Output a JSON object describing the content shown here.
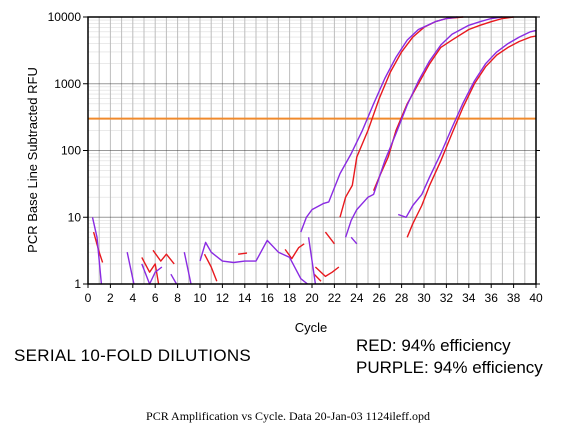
{
  "chart_data": {
    "type": "line",
    "title": "",
    "xlabel": "Cycle",
    "ylabel": "PCR Base Line Subtracted RFU",
    "xlim": [
      0,
      40
    ],
    "ylim": [
      1,
      10000
    ],
    "yscale": "log",
    "grid": true,
    "x_ticks": [
      "0",
      "2",
      "4",
      "6",
      "8",
      "10",
      "12",
      "14",
      "16",
      "18",
      "20",
      "22",
      "24",
      "26",
      "28",
      "30",
      "32",
      "34",
      "36",
      "38",
      "40"
    ],
    "y_ticks": [
      "1",
      "10",
      "100",
      "1000",
      "10000"
    ],
    "threshold": {
      "value": 300,
      "color": "#f08a2c"
    },
    "colors": {
      "red": "#e8191e",
      "purple": "#8a2be2",
      "grid": "#bdbdbd"
    },
    "series": [
      {
        "color": "red",
        "points": [
          [
            0.5,
            6
          ],
          [
            1,
            3
          ],
          [
            1.3,
            2.1
          ]
        ]
      },
      {
        "color": "red",
        "points": [
          [
            4.8,
            2.5
          ],
          [
            5.5,
            1.5
          ],
          [
            6,
            2
          ],
          [
            6.3,
            1
          ]
        ]
      },
      {
        "color": "red",
        "points": [
          [
            5.8,
            3.2
          ],
          [
            6.5,
            2.2
          ],
          [
            7,
            2.8
          ],
          [
            7.7,
            2
          ]
        ]
      },
      {
        "color": "red",
        "points": [
          [
            10.4,
            2.8
          ],
          [
            11,
            1.8
          ],
          [
            11.5,
            1.1
          ]
        ]
      },
      {
        "color": "red",
        "points": [
          [
            13.4,
            2.8
          ],
          [
            14.2,
            2.9
          ]
        ]
      },
      {
        "color": "red",
        "points": [
          [
            17.6,
            3.3
          ],
          [
            18.2,
            2.4
          ],
          [
            18.8,
            3.5
          ],
          [
            19.3,
            4
          ]
        ]
      },
      {
        "color": "red",
        "points": [
          [
            20.3,
            1.8
          ],
          [
            21.2,
            1.3
          ],
          [
            21.8,
            1.5
          ],
          [
            22.4,
            1.8
          ]
        ]
      },
      {
        "color": "red",
        "points": [
          [
            21.2,
            6
          ],
          [
            22,
            4
          ]
        ]
      },
      {
        "color": "red",
        "points": [
          [
            20.2,
            1.4
          ],
          [
            20.8,
            1.1
          ]
        ]
      },
      {
        "color": "red",
        "points": [
          [
            22.5,
            10
          ],
          [
            23,
            20
          ],
          [
            23.6,
            30
          ],
          [
            24,
            80
          ],
          [
            25,
            200
          ],
          [
            26,
            600
          ],
          [
            27,
            1500
          ],
          [
            28,
            3000
          ],
          [
            29,
            5000
          ],
          [
            30,
            7000
          ],
          [
            31,
            8500
          ],
          [
            32,
            9500
          ],
          [
            33.5,
            10000
          ]
        ]
      },
      {
        "color": "red",
        "points": [
          [
            25.5,
            25
          ],
          [
            26,
            40
          ],
          [
            26.8,
            80
          ],
          [
            27.5,
            200
          ],
          [
            28.5,
            500
          ],
          [
            29.5,
            1000
          ],
          [
            30.5,
            2000
          ],
          [
            31.5,
            3500
          ],
          [
            32.5,
            4500
          ],
          [
            34,
            6500
          ],
          [
            35,
            7500
          ],
          [
            36,
            8500
          ],
          [
            37,
            9500
          ],
          [
            38,
            10000
          ]
        ]
      },
      {
        "color": "red",
        "points": [
          [
            28.5,
            5
          ],
          [
            29,
            8
          ],
          [
            29.8,
            15
          ],
          [
            30.5,
            30
          ],
          [
            31.5,
            70
          ],
          [
            32.5,
            180
          ],
          [
            33.5,
            450
          ],
          [
            34.5,
            1000
          ],
          [
            35.5,
            1800
          ],
          [
            36.5,
            2700
          ],
          [
            37.5,
            3500
          ],
          [
            38.5,
            4300
          ],
          [
            39.5,
            5000
          ],
          [
            40,
            5200
          ]
        ]
      },
      {
        "color": "purple",
        "points": [
          [
            0.4,
            10
          ],
          [
            0.8,
            5
          ],
          [
            1.2,
            1
          ]
        ]
      },
      {
        "color": "purple",
        "points": [
          [
            3.5,
            3
          ],
          [
            4.1,
            1
          ]
        ]
      },
      {
        "color": "purple",
        "points": [
          [
            4.8,
            2
          ],
          [
            5.5,
            1
          ],
          [
            6,
            1.5
          ],
          [
            6.6,
            1.8
          ]
        ]
      },
      {
        "color": "purple",
        "points": [
          [
            7.4,
            1.4
          ],
          [
            7.9,
            1
          ]
        ]
      },
      {
        "color": "purple",
        "points": [
          [
            8.6,
            3
          ],
          [
            9.2,
            1
          ]
        ]
      },
      {
        "color": "purple",
        "points": [
          [
            10,
            2.2
          ],
          [
            10.5,
            4.2
          ],
          [
            11,
            3
          ],
          [
            12,
            2.2
          ],
          [
            13,
            2.1
          ],
          [
            14,
            2.2
          ],
          [
            15,
            2.2
          ],
          [
            16,
            4.5
          ],
          [
            17,
            3
          ],
          [
            18,
            2.5
          ],
          [
            19,
            1.2
          ],
          [
            19.6,
            1
          ]
        ]
      },
      {
        "color": "purple",
        "points": [
          [
            19,
            6
          ],
          [
            19.5,
            10
          ],
          [
            20,
            13
          ],
          [
            21,
            16
          ],
          [
            21.5,
            17
          ],
          [
            22.5,
            45
          ],
          [
            23.5,
            90
          ],
          [
            24.5,
            200
          ],
          [
            25.5,
            500
          ],
          [
            26.5,
            1200
          ],
          [
            27.5,
            2500
          ],
          [
            28.5,
            4500
          ],
          [
            29.5,
            6500
          ],
          [
            31,
            8500
          ],
          [
            32,
            9500
          ],
          [
            33,
            10000
          ]
        ]
      },
      {
        "color": "purple",
        "points": [
          [
            19.7,
            5
          ],
          [
            20.3,
            1
          ]
        ]
      },
      {
        "color": "purple",
        "points": [
          [
            23,
            5
          ],
          [
            23.5,
            9
          ],
          [
            24,
            13
          ],
          [
            25,
            20
          ],
          [
            25.5,
            22
          ],
          [
            26.5,
            70
          ],
          [
            27.5,
            180
          ],
          [
            28.5,
            480
          ],
          [
            29.5,
            1100
          ],
          [
            30.5,
            2200
          ],
          [
            31.5,
            3800
          ],
          [
            32.5,
            5500
          ],
          [
            34,
            7500
          ],
          [
            35,
            8500
          ],
          [
            36,
            9500
          ],
          [
            37,
            10000
          ]
        ]
      },
      {
        "color": "purple",
        "points": [
          [
            23.5,
            5
          ],
          [
            24,
            4
          ]
        ]
      },
      {
        "color": "purple",
        "points": [
          [
            27.7,
            11
          ],
          [
            28.4,
            10
          ],
          [
            29,
            15
          ],
          [
            29.8,
            22
          ],
          [
            30.5,
            40
          ],
          [
            31.5,
            90
          ],
          [
            32.5,
            220
          ],
          [
            33.5,
            520
          ],
          [
            34.5,
            1100
          ],
          [
            35.5,
            2000
          ],
          [
            36.5,
            3000
          ],
          [
            37.5,
            4000
          ],
          [
            38.5,
            5000
          ],
          [
            39.5,
            6000
          ],
          [
            40,
            6300
          ]
        ]
      }
    ]
  },
  "annotations": {
    "left_note": "SERIAL 10-FOLD DILUTIONS",
    "efficiency_red": "RED:  94% efficiency",
    "efficiency_purple": "PURPLE: 94% efficiency"
  },
  "caption": "PCR Amplification vs Cycle. Data 20-Jan-03 1124ileff.opd"
}
